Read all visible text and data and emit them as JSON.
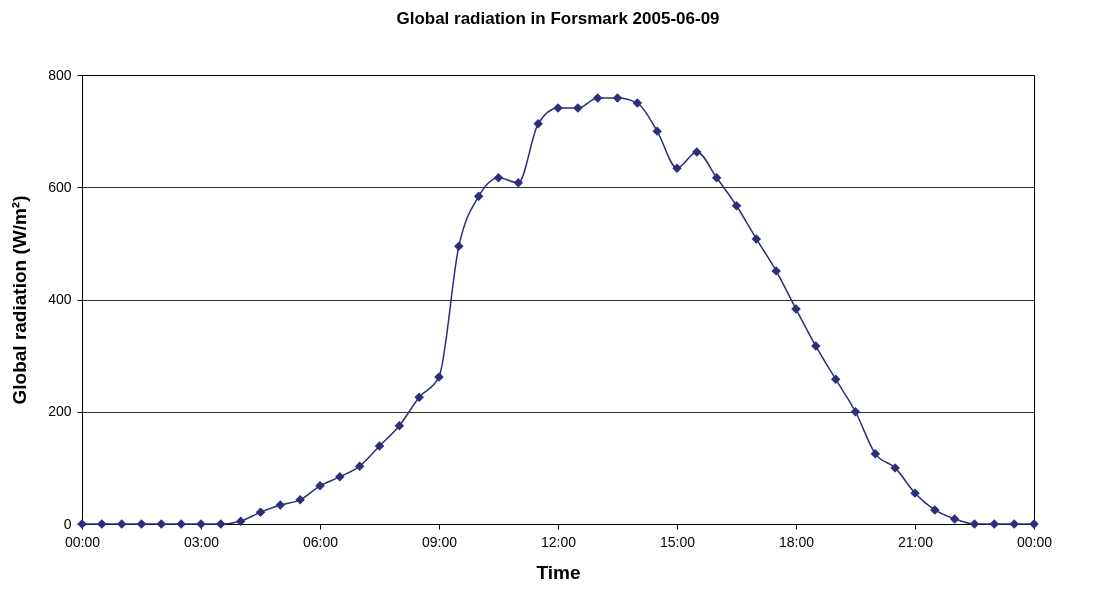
{
  "chart_data": {
    "type": "line",
    "title": "Global radiation in Forsmark 2005-06-09",
    "xlabel": "Time",
    "ylabel": "Global radiation (W/m²)",
    "x": [
      0,
      0.5,
      1,
      1.5,
      2,
      2.5,
      3,
      3.5,
      4,
      4.5,
      5,
      5.5,
      6,
      6.5,
      7,
      7.5,
      8,
      8.5,
      9,
      9.5,
      10,
      10.5,
      11,
      11.5,
      12,
      12.5,
      13,
      13.5,
      14,
      14.5,
      15,
      15.5,
      16,
      16.5,
      17,
      17.5,
      18,
      18.5,
      19,
      19.5,
      20,
      20.5,
      21,
      21.5,
      22,
      22.5,
      23,
      23.5,
      24
    ],
    "series": [
      {
        "color": "#2b2f7a",
        "values": [
          0,
          0,
          0,
          0,
          0,
          0,
          0,
          0,
          5,
          21,
          34,
          43,
          68,
          84,
          103,
          139,
          175,
          226,
          262,
          495,
          584,
          617,
          608,
          713,
          741,
          741,
          759,
          759,
          750,
          700,
          634,
          663,
          617,
          567,
          508,
          451,
          383,
          317,
          258,
          200,
          125,
          100,
          55,
          25,
          9,
          0,
          0,
          0,
          0
        ]
      }
    ],
    "xlim": [
      0,
      24
    ],
    "xticks": [
      {
        "value": 0,
        "label": "00:00"
      },
      {
        "value": 3,
        "label": "03:00"
      },
      {
        "value": 6,
        "label": "06:00"
      },
      {
        "value": 9,
        "label": "09:00"
      },
      {
        "value": 12,
        "label": "12:00"
      },
      {
        "value": 15,
        "label": "15:00"
      },
      {
        "value": 18,
        "label": "18:00"
      },
      {
        "value": 21,
        "label": "21:00"
      },
      {
        "value": 24,
        "label": "00:00"
      }
    ],
    "ylim": [
      0,
      800
    ],
    "yticks": [
      0,
      200,
      400,
      600,
      800
    ],
    "grid": "y",
    "marker": "diamond",
    "line_style": "solid",
    "legend": false
  }
}
